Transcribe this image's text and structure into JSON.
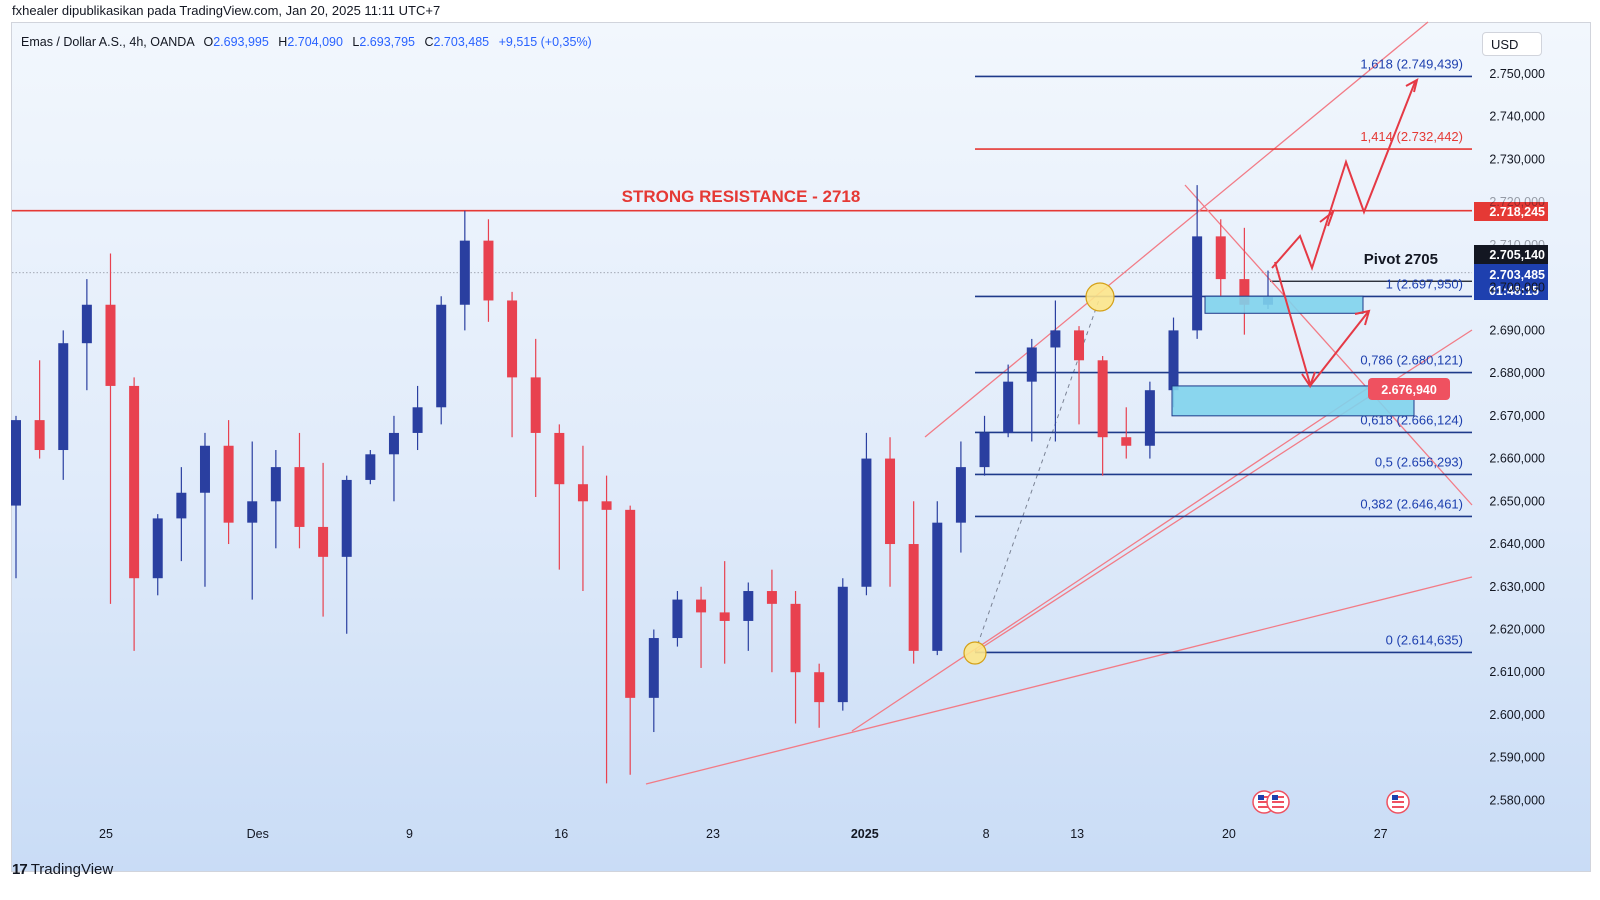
{
  "header": {
    "publish_line": "fxhealer dipublikasikan pada TradingView.com, Jan 20, 2025 11:11 UTC+7"
  },
  "legend": {
    "symbol": "Emas / Dollar A.S., 4h, OANDA",
    "o_label": "O",
    "o_value": "2.693,995",
    "h_label": "H",
    "h_value": "2.704,090",
    "l_label": "L",
    "l_value": "2.693,795",
    "c_label": "C",
    "c_value": "2.703,485",
    "change": "+9,515 (+0,35%)"
  },
  "currency_button": "USD",
  "brand": {
    "logo_mark": "17",
    "name": "TradingView"
  },
  "colors": {
    "bull": "#2a3fa0",
    "bear": "#e8414f",
    "fib_blue": "#1e3a8a",
    "resistance": "#e53935",
    "trendline": "#f27b86",
    "zone": "#7fd3ec"
  },
  "chart_data": {
    "type": "candlestick",
    "symbol": "Emas / Dollar A.S.",
    "timeframe": "4h",
    "y_axis": {
      "ticks": [
        "2.580,000",
        "2.590,000",
        "2.600,000",
        "2.610,000",
        "2.620,000",
        "2.630,000",
        "2.640,000",
        "2.650,000",
        "2.660,000",
        "2.670,000",
        "2.680,000",
        "2.690,000",
        "2.700,000",
        "2.710,000",
        "2.720,000",
        "2.730,000",
        "2.740,000",
        "2.750,000"
      ],
      "tick_values": [
        2580,
        2590,
        2600,
        2610,
        2620,
        2630,
        2640,
        2650,
        2660,
        2670,
        2680,
        2690,
        2700,
        2710,
        2720,
        2730,
        2740,
        2750
      ]
    },
    "x_axis": {
      "ticks": [
        "25",
        "Des",
        "9",
        "16",
        "23",
        "2025",
        "8",
        "13",
        "20",
        "27"
      ],
      "tick_day_index": [
        0,
        5,
        10,
        15,
        20,
        25,
        29,
        32,
        37,
        42
      ]
    },
    "candles": [
      [
        2649,
        2670,
        2669,
        2632
      ],
      [
        2669,
        2683,
        2662,
        2660
      ],
      [
        2662,
        2690,
        2687,
        2655
      ],
      [
        2687,
        2702,
        2696,
        2676
      ],
      [
        2696,
        2708,
        2677,
        2626
      ],
      [
        2677,
        2679,
        2632,
        2615
      ],
      [
        2632,
        2647,
        2646,
        2628
      ],
      [
        2646,
        2658,
        2652,
        2636
      ],
      [
        2652,
        2666,
        2663,
        2630
      ],
      [
        2663,
        2669,
        2645,
        2640
      ],
      [
        2645,
        2664,
        2650,
        2627
      ],
      [
        2650,
        2662,
        2658,
        2639
      ],
      [
        2658,
        2666,
        2644,
        2639
      ],
      [
        2644,
        2659,
        2637,
        2623
      ],
      [
        2637,
        2656,
        2655,
        2619
      ],
      [
        2655,
        2662,
        2661,
        2654
      ],
      [
        2661,
        2670,
        2666,
        2650
      ],
      [
        2666,
        2677,
        2672,
        2662
      ],
      [
        2672,
        2698,
        2696,
        2668
      ],
      [
        2696,
        2718,
        2711,
        2690
      ],
      [
        2711,
        2716,
        2697,
        2692
      ],
      [
        2697,
        2699,
        2679,
        2665
      ],
      [
        2679,
        2688,
        2666,
        2651
      ],
      [
        2666,
        2668,
        2654,
        2634
      ],
      [
        2654,
        2663,
        2650,
        2629
      ],
      [
        2650,
        2656,
        2648,
        2584
      ],
      [
        2648,
        2649,
        2604,
        2586
      ],
      [
        2604,
        2620,
        2618,
        2596
      ],
      [
        2618,
        2629,
        2627,
        2616
      ],
      [
        2627,
        2630,
        2624,
        2611
      ],
      [
        2624,
        2636,
        2622,
        2612
      ],
      [
        2622,
        2631,
        2629,
        2615
      ],
      [
        2629,
        2634,
        2626,
        2610
      ],
      [
        2626,
        2629,
        2610,
        2598
      ],
      [
        2610,
        2612,
        2603,
        2597
      ],
      [
        2603,
        2632,
        2630,
        2601
      ],
      [
        2630,
        2666,
        2660,
        2628
      ],
      [
        2660,
        2665,
        2640,
        2630
      ],
      [
        2640,
        2650,
        2615,
        2612
      ],
      [
        2615,
        2650,
        2645,
        2614
      ],
      [
        2645,
        2664,
        2658,
        2638
      ],
      [
        2658,
        2670,
        2666,
        2656
      ],
      [
        2666,
        2682,
        2678,
        2665
      ],
      [
        2678,
        2688,
        2686,
        2664
      ],
      [
        2686,
        2697,
        2690,
        2664
      ],
      [
        2690,
        2691,
        2683,
        2668
      ],
      [
        2683,
        2684,
        2665,
        2656
      ],
      [
        2665,
        2672,
        2663,
        2660
      ],
      [
        2663,
        2678,
        2676,
        2660
      ],
      [
        2676,
        2693,
        2690,
        2672
      ],
      [
        2690,
        2724,
        2712,
        2688
      ],
      [
        2712,
        2716,
        2702,
        2698
      ],
      [
        2702,
        2714,
        2696,
        2689
      ],
      [
        2696,
        2704,
        2698,
        2695
      ]
    ],
    "annotations": {
      "resistance_title": "STRONG RESISTANCE - 2718",
      "resistance_value": 2718,
      "pivot_label": "Pivot 2705",
      "pivot_value": 2705,
      "fib_levels": [
        {
          "label": "1,618 (2.749,439)",
          "value": 2749.439
        },
        {
          "label": "1,414 (2.732,442)",
          "value": 2732.442
        },
        {
          "label": "1 (2.697,950)",
          "value": 2697.95
        },
        {
          "label": "0,786 (2.680,121)",
          "value": 2680.121
        },
        {
          "label": "0,618 (2.666,124)",
          "value": 2666.124
        },
        {
          "label": "0,5 (2.656,293)",
          "value": 2656.293
        },
        {
          "label": "0,382 (2.646,461)",
          "value": 2646.461
        },
        {
          "label": "0 (2.614,635)",
          "value": 2614.635
        }
      ]
    },
    "price_tags": {
      "resistance": "2.718,245",
      "pivot": "2.705,140",
      "last_price": "2.703,485",
      "countdown": "01:48:15",
      "zone": "2.676,940"
    },
    "partial_ticks": {
      "upper": "2.720,000",
      "lower": "2.710,000"
    }
  }
}
